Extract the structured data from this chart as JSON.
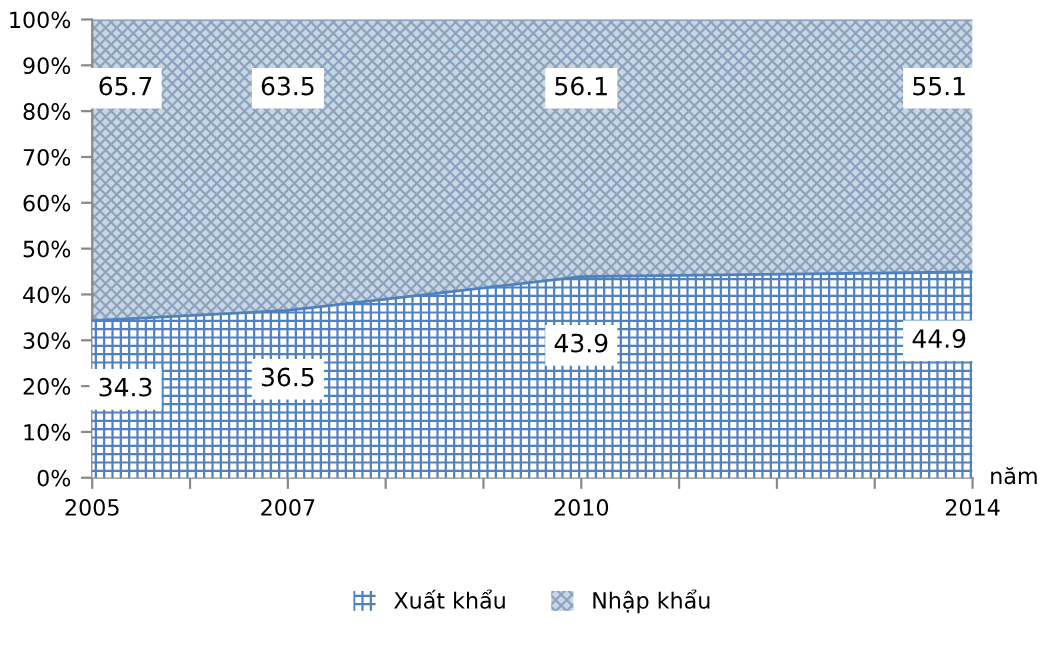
{
  "chart_data": {
    "type": "area",
    "stacked": true,
    "xlabel": "năm",
    "x": [
      2005,
      2007,
      2010,
      2014
    ],
    "series": [
      {
        "name": "Xuất khẩu",
        "color": "#4f81bd",
        "values": [
          34.3,
          36.5,
          43.9,
          44.9
        ]
      },
      {
        "name": "Nhập khẩu",
        "color": "#8aa4c0",
        "values": [
          65.7,
          63.5,
          56.1,
          55.1
        ]
      }
    ],
    "xlim": [
      2005,
      2014
    ],
    "xticks": [
      2005,
      {
        "value": 2006,
        "label": null
      },
      2007,
      {
        "value": 2008,
        "label": null
      },
      {
        "value": 2009,
        "label": null
      },
      2010,
      {
        "value": 2011,
        "label": null
      },
      {
        "value": 2012,
        "label": null
      },
      {
        "value": 2013,
        "label": null
      },
      2014
    ],
    "ylim": [
      0,
      100
    ],
    "yticks": [
      {
        "value": 0,
        "label": "0%"
      },
      {
        "value": 10,
        "label": "10%"
      },
      {
        "value": 20,
        "label": "20%"
      },
      {
        "value": 30,
        "label": "30%"
      },
      {
        "value": 40,
        "label": "40%"
      },
      {
        "value": 50,
        "label": "50%"
      },
      {
        "value": 60,
        "label": "60%"
      },
      {
        "value": 70,
        "label": "70%"
      },
      {
        "value": 80,
        "label": "80%"
      },
      {
        "value": 90,
        "label": "90%"
      },
      {
        "value": 100,
        "label": "100%"
      }
    ],
    "data_labels": true,
    "grid": false,
    "legend": "bottom"
  }
}
